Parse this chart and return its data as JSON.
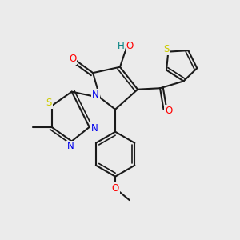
{
  "bg_color": "#ebebeb",
  "bond_color": "#1a1a1a",
  "atom_colors": {
    "O": "#ff0000",
    "N": "#0000ee",
    "S": "#cccc00",
    "H": "#008080",
    "C": "#1a1a1a"
  },
  "figsize": [
    3.0,
    3.0
  ],
  "dpi": 100,
  "lw": 1.5,
  "lw_inner": 1.2,
  "fontsize": 7.5
}
